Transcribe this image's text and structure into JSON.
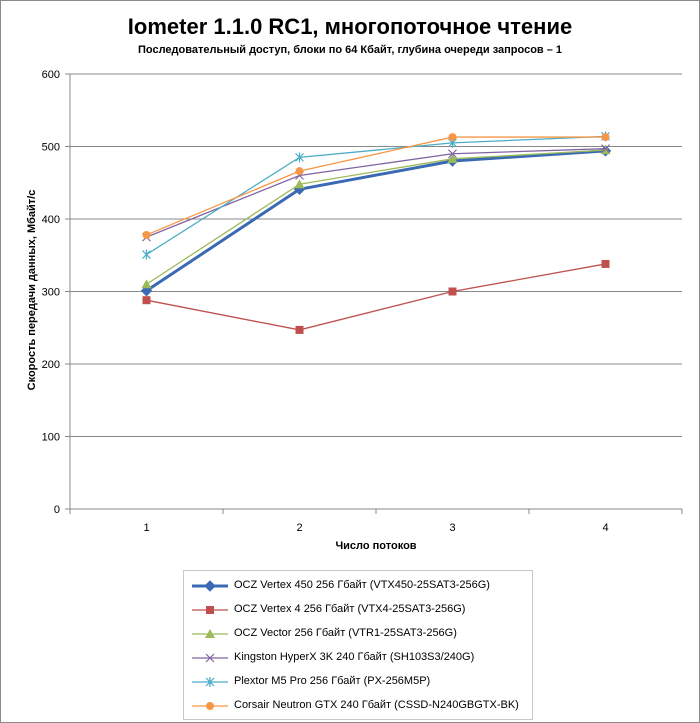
{
  "chart_data": {
    "type": "line",
    "title": "Iometer 1.1.0 RC1, многопоточное чтение",
    "subtitle": "Последовательный доступ, блоки по 64 Кбайт, глубина очереди запросов – 1",
    "xlabel": "Число потоков",
    "ylabel": "Скорость передачи данных, Мбайт/с",
    "categories": [
      "1",
      "2",
      "3",
      "4"
    ],
    "yticks": [
      "0",
      "100",
      "200",
      "300",
      "400",
      "500",
      "600"
    ],
    "ylim": [
      0,
      600
    ],
    "grid": true,
    "legend_position": "bottom",
    "series": [
      {
        "name": "OCZ Vertex 450 256 Гбайт (VTX450-25SAT3-256G)",
        "values": [
          301,
          441,
          480,
          494
        ],
        "color": "#3b6ab5",
        "marker": "diamond"
      },
      {
        "name": "OCZ Vertex 4 256 Гбайт (VTX4-25SAT3-256G)",
        "values": [
          288,
          247,
          300,
          338
        ],
        "color": "#c0504d",
        "marker": "square"
      },
      {
        "name": "OCZ Vector 256 Гбайт (VTR1-25SAT3-256G)",
        "values": [
          310,
          448,
          483,
          495
        ],
        "color": "#9bbb59",
        "marker": "triangle"
      },
      {
        "name": "Kingston HyperX 3K 240 Гбайт (SH103S3/240G)",
        "values": [
          375,
          460,
          490,
          497
        ],
        "color": "#8064a2",
        "marker": "x"
      },
      {
        "name": "Plextor M5 Pro 256 Гбайт (PX-256M5P)",
        "values": [
          351,
          485,
          505,
          514
        ],
        "color": "#4bacc6",
        "marker": "star"
      },
      {
        "name": "Corsair Neutron GTX 240 Гбайт (CSSD-N240GBGTX-BK)",
        "values": [
          378,
          466,
          513,
          513
        ],
        "color": "#f79646",
        "marker": "circle"
      }
    ]
  }
}
